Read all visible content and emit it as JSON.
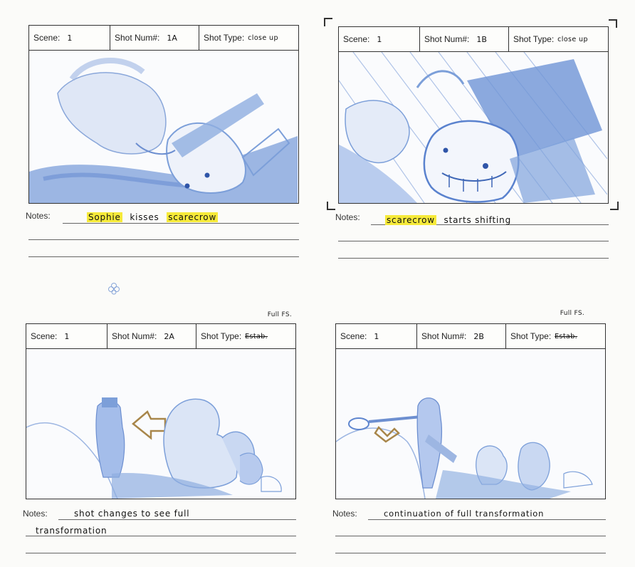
{
  "labels": {
    "scene": "Scene:",
    "shot_num": "Shot Num#:",
    "shot_type": "Shot Type:",
    "notes": "Notes:"
  },
  "panels": [
    {
      "scene": "1",
      "shot_num": "1A",
      "shot_type": "close up",
      "notes_parts": [
        "Sophie",
        "kisses",
        "scarecrow"
      ],
      "notes_lines": []
    },
    {
      "scene": "1",
      "shot_num": "1B",
      "shot_type": "close up",
      "notes_parts": [
        "scarecrow",
        "starts shifting"
      ],
      "notes_lines": []
    },
    {
      "scene": "1",
      "shot_num": "2A",
      "shot_type": "Estab.",
      "annotation": "Full FS.",
      "notes_lines": [
        "shot changes to see full",
        "transformation"
      ]
    },
    {
      "scene": "1",
      "shot_num": "2B",
      "shot_type": "Estab.",
      "annotation": "Full FS.",
      "notes_lines": [
        "continuation of full transformation"
      ]
    }
  ],
  "colors": {
    "pencil_blue": "#7c9fd9",
    "pencil_blue_light": "#b8cbee",
    "highlight": "#f6ea3a",
    "arrow": "#a8864a"
  }
}
